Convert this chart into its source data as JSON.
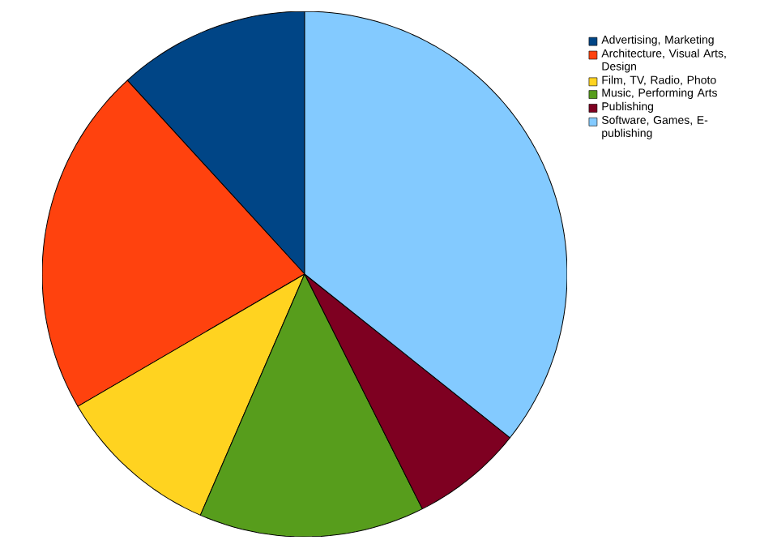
{
  "chart_data": {
    "type": "pie",
    "categories": [
      "Advertising, Marketing",
      "Architecture, Visual Arts, Design",
      "Film, TV, Radio, Photo",
      "Music, Performing Arts",
      "Publishing",
      "Software, Games, E-publishing"
    ],
    "values": [
      11.8,
      21.6,
      10.1,
      13.9,
      6.9,
      35.7
    ],
    "colors": [
      "#004586",
      "#ff420e",
      "#ffd320",
      "#579d1c",
      "#7e0021",
      "#83caff"
    ],
    "legend": "top right"
  }
}
